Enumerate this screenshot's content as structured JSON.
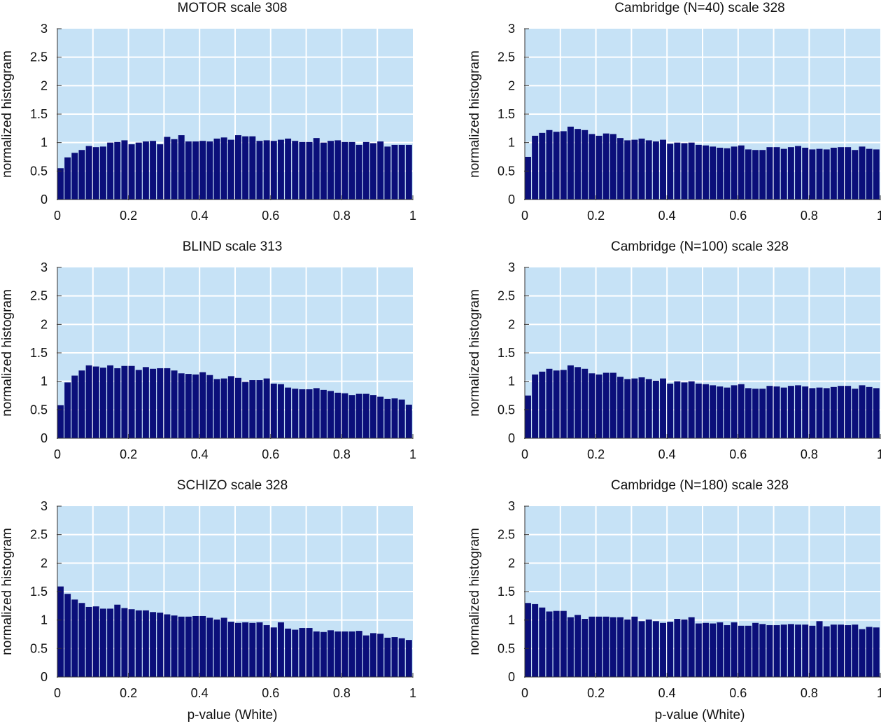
{
  "colors": {
    "plot_background": "#c6e2f6",
    "bar_fill": "#0b0f7a",
    "grid": "#ffffff",
    "text": "#111111"
  },
  "chart_data": [
    {
      "type": "bar",
      "title": "MOTOR scale 308",
      "xlabel": "",
      "ylabel": "normalized histogram",
      "xlim": [
        0,
        1
      ],
      "ylim": [
        0,
        3
      ],
      "xticks": [
        "0",
        "0.2",
        "0.4",
        "0.6",
        "0.8",
        "1"
      ],
      "yticks": [
        "0",
        "0.5",
        "1",
        "1.5",
        "2",
        "2.5",
        "3"
      ],
      "grid": true,
      "bin_width": 0.02,
      "values": [
        0.55,
        0.74,
        0.82,
        0.87,
        0.94,
        0.92,
        0.93,
        1.0,
        1.01,
        1.04,
        0.97,
        1.0,
        1.02,
        1.03,
        0.97,
        1.1,
        1.06,
        1.13,
        1.02,
        1.02,
        1.03,
        1.02,
        1.07,
        1.09,
        1.05,
        1.13,
        1.11,
        1.11,
        1.03,
        1.04,
        1.03,
        1.05,
        1.07,
        1.03,
        1.01,
        1.01,
        1.08,
        1.0,
        1.03,
        1.04,
        1.01,
        1.01,
        0.96,
        1.01,
        0.99,
        1.02,
        0.93,
        0.96,
        0.96,
        0.96
      ]
    },
    {
      "type": "bar",
      "title": "Cambridge (N=40) scale 328",
      "xlabel": "",
      "ylabel": "normalized histogram",
      "xlim": [
        0,
        1
      ],
      "ylim": [
        0,
        3
      ],
      "xticks": [
        "0",
        "0.2",
        "0.4",
        "0.6",
        "0.8",
        "1"
      ],
      "yticks": [
        "0",
        "0.5",
        "1",
        "1.5",
        "2",
        "2.5",
        "3"
      ],
      "grid": true,
      "bin_width": 0.02,
      "values": [
        0.75,
        1.12,
        1.17,
        1.22,
        1.19,
        1.2,
        1.28,
        1.24,
        1.22,
        1.15,
        1.12,
        1.16,
        1.15,
        1.08,
        1.04,
        1.05,
        1.07,
        1.04,
        1.02,
        1.05,
        0.98,
        1.0,
        0.99,
        1.0,
        0.96,
        0.95,
        0.93,
        0.91,
        0.9,
        0.93,
        0.95,
        0.88,
        0.87,
        0.87,
        0.92,
        0.92,
        0.89,
        0.92,
        0.94,
        0.91,
        0.88,
        0.89,
        0.88,
        0.91,
        0.92,
        0.92,
        0.87,
        0.93,
        0.89,
        0.88
      ]
    },
    {
      "type": "bar",
      "title": "BLIND scale 313",
      "xlabel": "",
      "ylabel": "normalized histogram",
      "xlim": [
        0,
        1
      ],
      "ylim": [
        0,
        3
      ],
      "xticks": [
        "0",
        "0.2",
        "0.4",
        "0.6",
        "0.8",
        "1"
      ],
      "yticks": [
        "0",
        "0.5",
        "1",
        "1.5",
        "2",
        "2.5",
        "3"
      ],
      "grid": true,
      "bin_width": 0.02,
      "values": [
        0.58,
        0.98,
        1.1,
        1.19,
        1.28,
        1.26,
        1.24,
        1.28,
        1.23,
        1.27,
        1.27,
        1.2,
        1.25,
        1.22,
        1.23,
        1.23,
        1.19,
        1.14,
        1.13,
        1.12,
        1.16,
        1.11,
        1.04,
        1.05,
        1.09,
        1.06,
        0.99,
        1.02,
        1.02,
        1.05,
        0.96,
        0.95,
        0.89,
        0.87,
        0.86,
        0.86,
        0.88,
        0.85,
        0.83,
        0.8,
        0.79,
        0.76,
        0.78,
        0.78,
        0.76,
        0.73,
        0.69,
        0.7,
        0.68,
        0.59
      ]
    },
    {
      "type": "bar",
      "title": "Cambridge (N=100) scale 328",
      "xlabel": "",
      "ylabel": "normalized histogram",
      "xlim": [
        0,
        1
      ],
      "ylim": [
        0,
        3
      ],
      "xticks": [
        "0",
        "0.2",
        "0.4",
        "0.6",
        "0.8",
        "1"
      ],
      "yticks": [
        "0",
        "0.5",
        "1",
        "1.5",
        "2",
        "2.5",
        "3"
      ],
      "grid": true,
      "bin_width": 0.02,
      "values": [
        0.75,
        1.12,
        1.17,
        1.22,
        1.19,
        1.2,
        1.28,
        1.25,
        1.22,
        1.14,
        1.12,
        1.15,
        1.15,
        1.08,
        1.04,
        1.05,
        1.07,
        1.04,
        1.01,
        1.05,
        0.96,
        1.0,
        0.98,
        1.0,
        0.96,
        0.95,
        0.93,
        0.91,
        0.89,
        0.93,
        0.95,
        0.88,
        0.87,
        0.87,
        0.92,
        0.91,
        0.89,
        0.92,
        0.93,
        0.91,
        0.88,
        0.89,
        0.88,
        0.9,
        0.92,
        0.92,
        0.87,
        0.93,
        0.9,
        0.88
      ]
    },
    {
      "type": "bar",
      "title": "SCHIZO scale 328",
      "xlabel": "p-value (White)",
      "ylabel": "normalized histogram",
      "xlim": [
        0,
        1
      ],
      "ylim": [
        0,
        3
      ],
      "xticks": [
        "0",
        "0.2",
        "0.4",
        "0.6",
        "0.8",
        "1"
      ],
      "yticks": [
        "0",
        "0.5",
        "1",
        "1.5",
        "2",
        "2.5",
        "3"
      ],
      "grid": true,
      "bin_width": 0.02,
      "values": [
        1.59,
        1.46,
        1.36,
        1.3,
        1.23,
        1.24,
        1.2,
        1.2,
        1.27,
        1.21,
        1.19,
        1.17,
        1.17,
        1.14,
        1.13,
        1.1,
        1.08,
        1.06,
        1.06,
        1.07,
        1.07,
        1.04,
        1.01,
        1.04,
        0.97,
        0.95,
        0.96,
        0.95,
        0.96,
        0.91,
        0.87,
        0.96,
        0.85,
        0.83,
        0.86,
        0.86,
        0.8,
        0.79,
        0.82,
        0.8,
        0.8,
        0.8,
        0.81,
        0.73,
        0.77,
        0.76,
        0.69,
        0.7,
        0.68,
        0.65
      ]
    },
    {
      "type": "bar",
      "title": "Cambridge (N=180) scale 328",
      "xlabel": "p-value (White)",
      "ylabel": "normalized histogram",
      "xlim": [
        0,
        1
      ],
      "ylim": [
        0,
        3
      ],
      "xticks": [
        "0",
        "0.2",
        "0.4",
        "0.6",
        "0.8",
        "1"
      ],
      "yticks": [
        "0",
        "0.5",
        "1",
        "1.5",
        "2",
        "2.5",
        "3"
      ],
      "grid": true,
      "bin_width": 0.02,
      "values": [
        1.3,
        1.28,
        1.22,
        1.15,
        1.16,
        1.16,
        1.05,
        1.09,
        1.02,
        1.06,
        1.06,
        1.06,
        1.05,
        1.05,
        1.01,
        1.06,
        0.98,
        1.01,
        0.98,
        0.95,
        0.97,
        1.02,
        1.01,
        1.05,
        0.94,
        0.95,
        0.94,
        0.96,
        0.91,
        0.96,
        0.9,
        0.9,
        0.95,
        0.93,
        0.91,
        0.91,
        0.92,
        0.93,
        0.92,
        0.92,
        0.9,
        0.98,
        0.89,
        0.92,
        0.92,
        0.91,
        0.92,
        0.84,
        0.88,
        0.87
      ]
    }
  ]
}
